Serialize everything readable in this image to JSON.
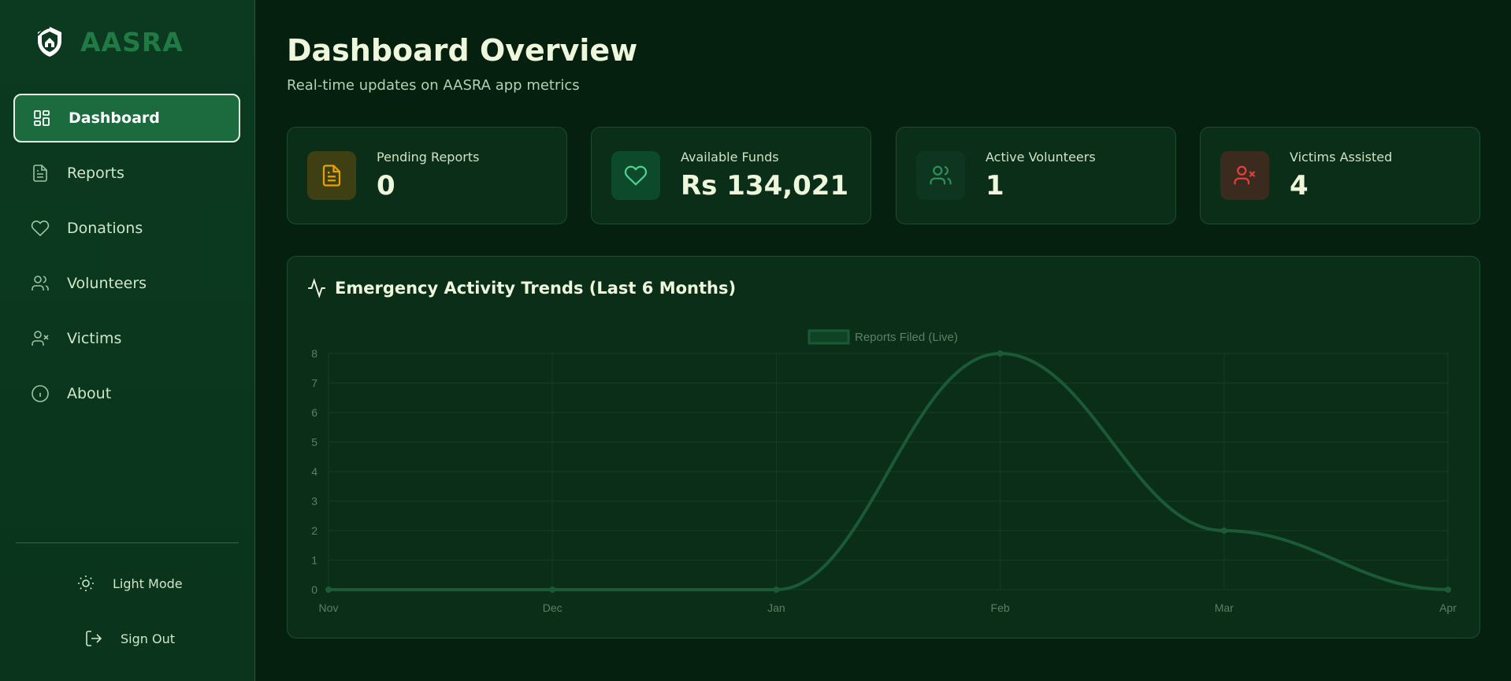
{
  "brand": {
    "name": "AASRA",
    "logo_icon": "shield-home-icon"
  },
  "nav": [
    {
      "label": "Dashboard",
      "icon": "dashboard-grid-icon",
      "active": true
    },
    {
      "label": "Reports",
      "icon": "document-icon",
      "active": false
    },
    {
      "label": "Donations",
      "icon": "heart-icon",
      "active": false
    },
    {
      "label": "Volunteers",
      "icon": "users-icon",
      "active": false
    },
    {
      "label": "Victims",
      "icon": "user-x-icon",
      "active": false
    },
    {
      "label": "About",
      "icon": "info-icon",
      "active": false
    }
  ],
  "sidebar_footer": {
    "theme_toggle": {
      "label": "Light Mode",
      "icon": "sun-icon"
    },
    "sign_out": {
      "label": "Sign Out",
      "icon": "sign-out-icon"
    }
  },
  "header": {
    "title": "Dashboard Overview",
    "subtitle": "Real-time updates on AASRA app metrics"
  },
  "stats": [
    {
      "label": "Pending Reports",
      "value": "0",
      "icon": "document-icon",
      "icon_color": "#e5a00d",
      "icon_bg": "#3f3f14"
    },
    {
      "label": "Available Funds",
      "value": "Rs 134,021",
      "icon": "heart-icon",
      "icon_color": "#4fd190",
      "icon_bg": "#0d4a2c"
    },
    {
      "label": "Active Volunteers",
      "value": "1",
      "icon": "users-icon",
      "icon_color": "#2f8f57",
      "icon_bg": "#0d3520"
    },
    {
      "label": "Victims Assisted",
      "value": "4",
      "icon": "user-x-icon",
      "icon_color": "#e0413f",
      "icon_bg": "#3b2a1e"
    }
  ],
  "chart_panel": {
    "title": "Emergency Activity Trends (Last 6 Months)",
    "icon": "activity-icon"
  },
  "chart_data": {
    "type": "line",
    "categories": [
      "Nov",
      "Dec",
      "Jan",
      "Feb",
      "Mar",
      "Apr"
    ],
    "series": [
      {
        "name": "Reports Filed (Live)",
        "values": [
          0,
          0,
          0,
          8,
          2,
          0
        ]
      }
    ],
    "ylim": [
      0,
      8
    ],
    "yticks": [
      0,
      1,
      2,
      3,
      4,
      5,
      6,
      7,
      8
    ],
    "legend": "top",
    "grid": true,
    "smooth": true,
    "colors": {
      "line": "#1b5a37",
      "grid": "#133d24",
      "tick": "#5f7f64",
      "legend_text": "#5f7f64"
    }
  }
}
